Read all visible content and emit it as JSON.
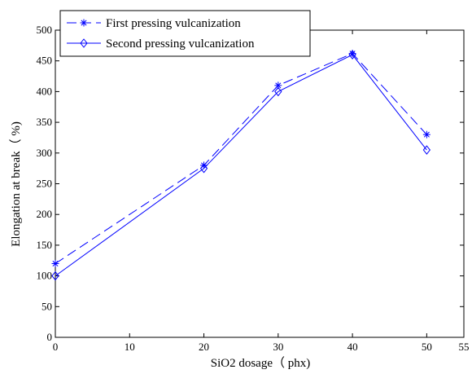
{
  "chart_data": {
    "type": "line",
    "title": "",
    "xlabel": "SiO2 dosage（ phx)",
    "ylabel": "Elongation at break（ %)",
    "xlim": [
      0,
      55
    ],
    "ylim": [
      0,
      500
    ],
    "xticks": [
      0,
      10,
      20,
      30,
      40,
      50,
      55
    ],
    "yticks": [
      0,
      50,
      100,
      150,
      200,
      250,
      300,
      350,
      400,
      450,
      500
    ],
    "grid": false,
    "legend_position": "top-left",
    "series": [
      {
        "name": "First pressing vulcanization",
        "marker": "asterisk",
        "line_style": "dashed",
        "color": "#0000ff",
        "x": [
          0,
          20,
          30,
          40,
          50
        ],
        "y": [
          120,
          280,
          410,
          462,
          330
        ]
      },
      {
        "name": "Second pressing vulcanization",
        "marker": "diamond",
        "line_style": "solid",
        "color": "#0000ff",
        "x": [
          0,
          20,
          30,
          40,
          50
        ],
        "y": [
          100,
          275,
          400,
          460,
          305
        ]
      }
    ]
  }
}
